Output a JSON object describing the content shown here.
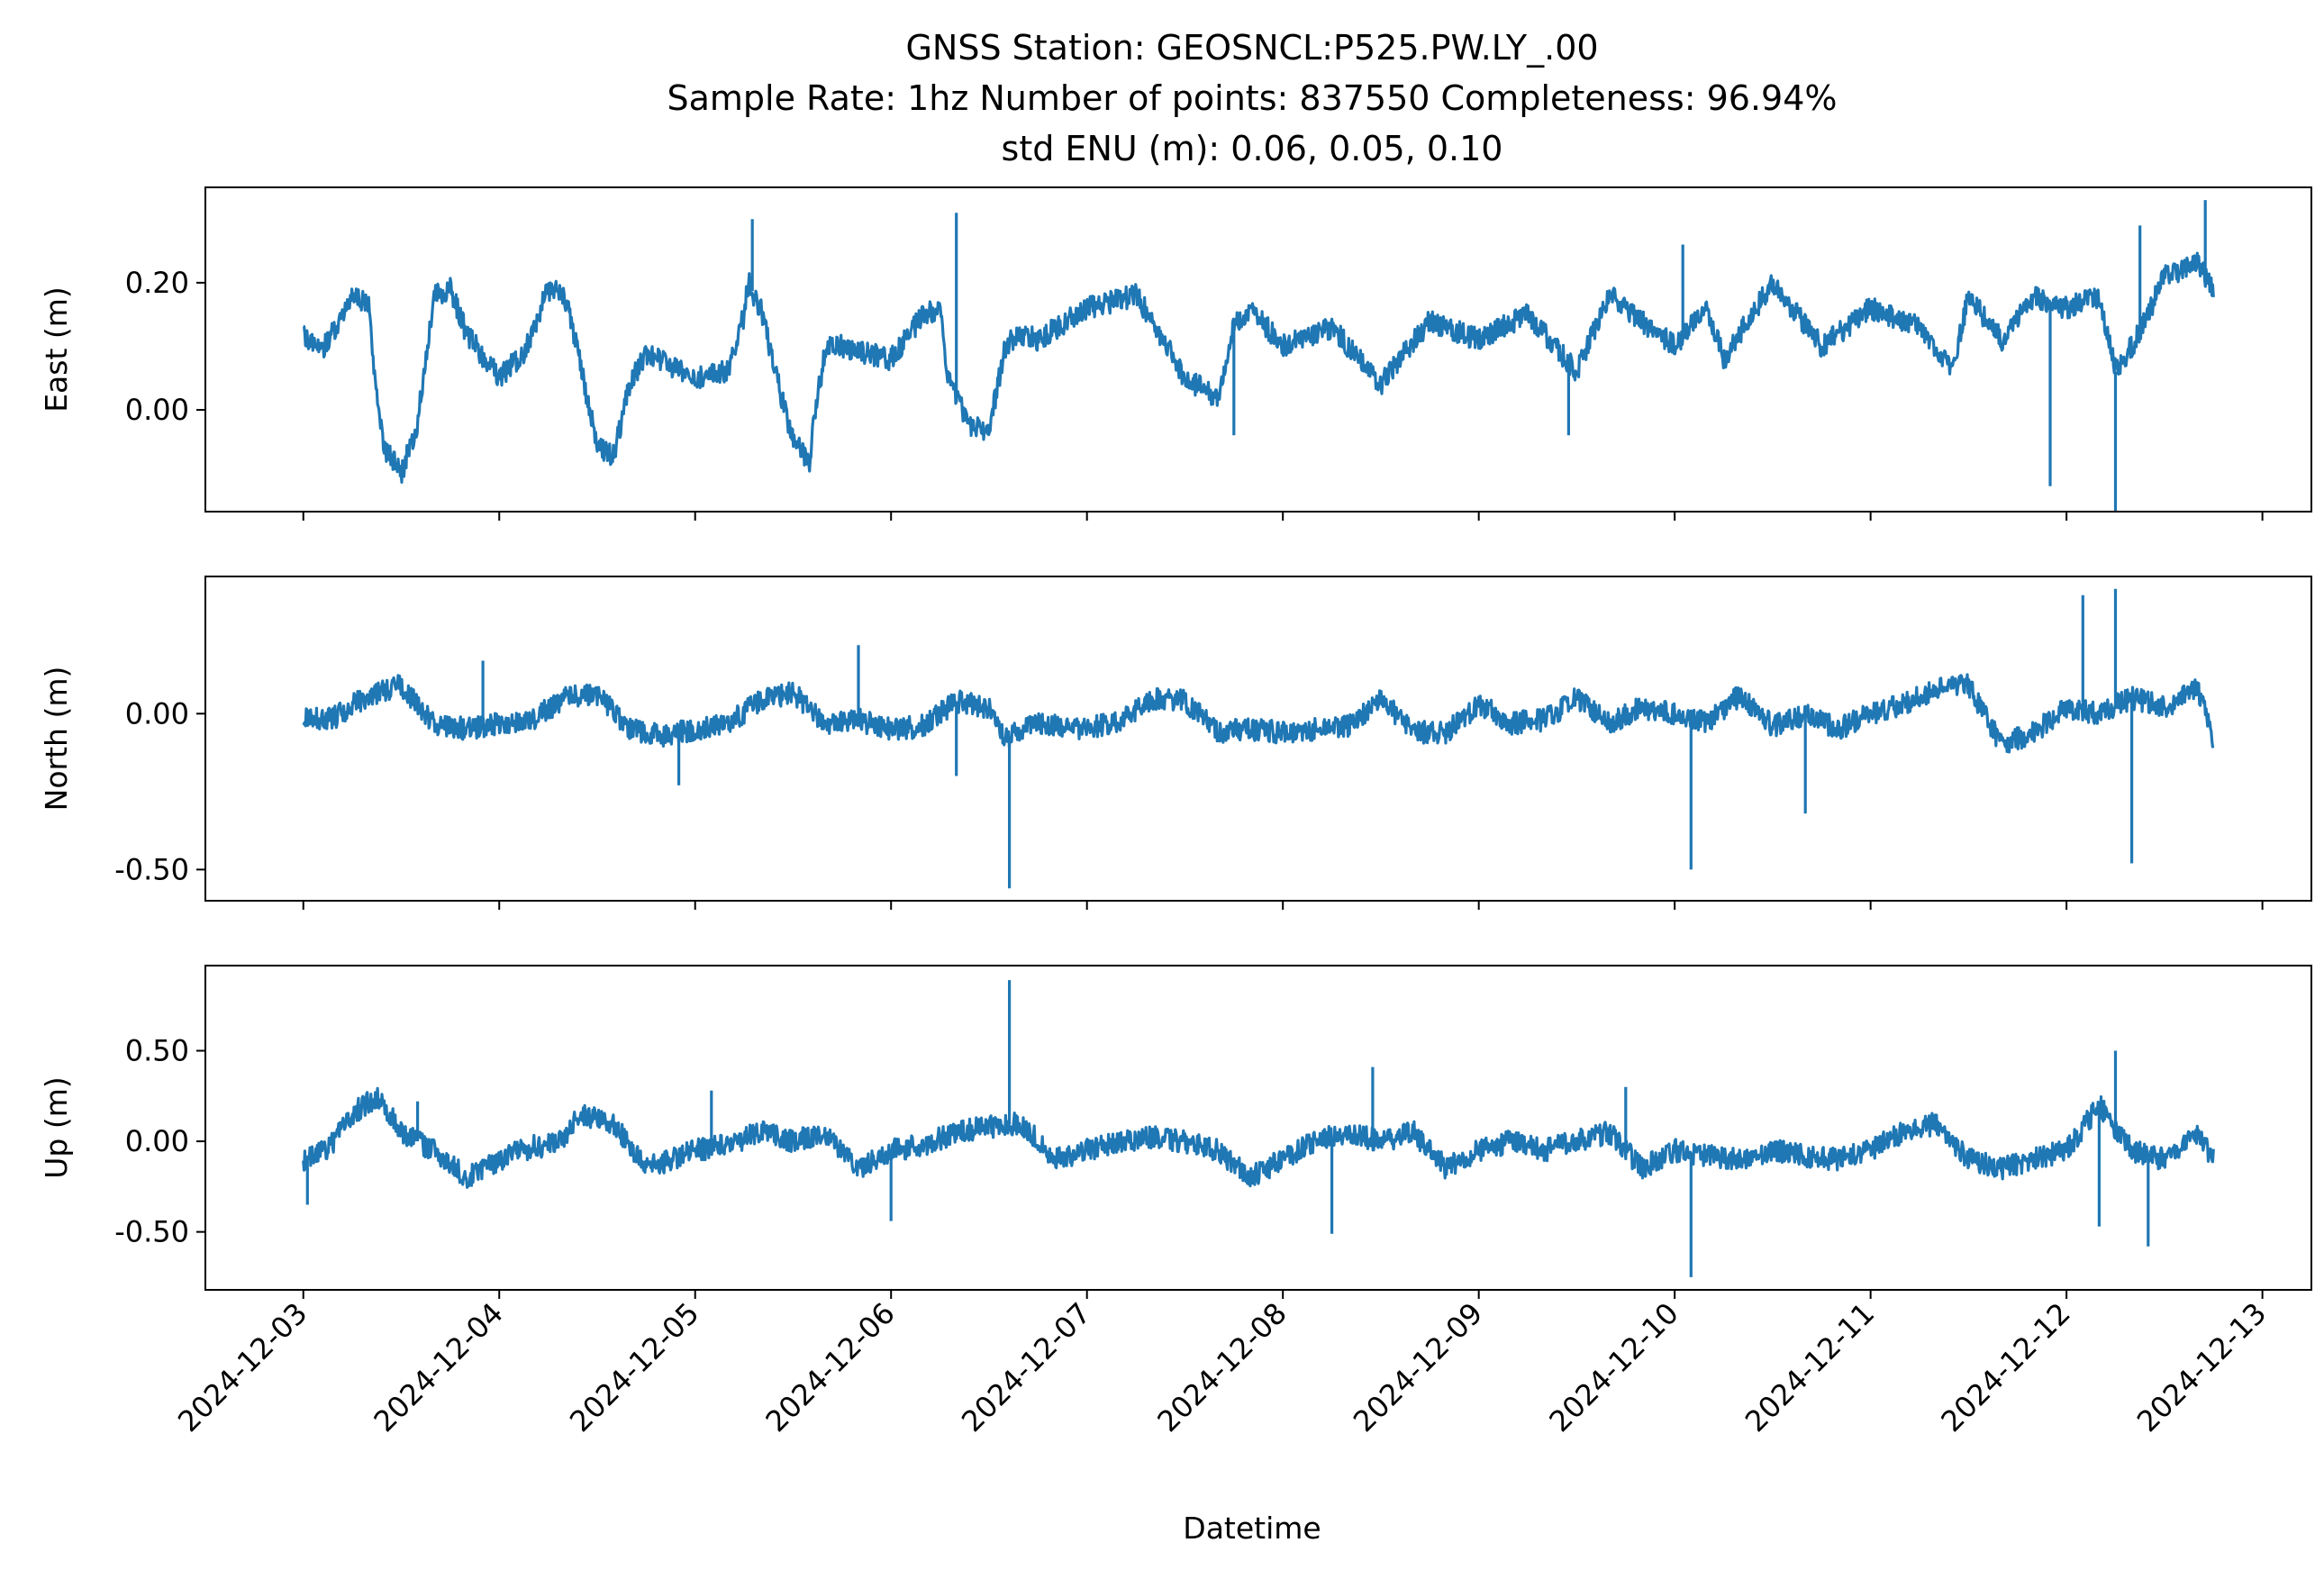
{
  "figure": {
    "title_lines": [
      "GNSS Station: GEOSNCL:P525.PW.LY_.00",
      "Sample Rate: 1hz   Number of points: 837550    Completeness:  96.94%",
      "std ENU (m):  0.06, 0.05, 0.10"
    ],
    "xlabel": "Datetime",
    "line_color": "#1f77b4"
  },
  "chart_data": [
    {
      "type": "line",
      "name": "east",
      "ylabel": "East (m)",
      "xlim": [
        "2024-12-02T12:00",
        "2024-12-13T06:00"
      ],
      "ylim": [
        -0.16,
        0.35
      ],
      "yticks": [
        0.0,
        0.2
      ],
      "ytick_labels": [
        "0.00",
        "0.20"
      ],
      "xtick_labels": [],
      "series": [
        {
          "x": [
            "2024-12-03T00:00",
            "2024-12-03T02:00",
            "2024-12-03T04:00",
            "2024-12-03T06:00",
            "2024-12-03T08:00",
            "2024-12-03T09:00",
            "2024-12-03T10:00",
            "2024-12-03T12:00",
            "2024-12-03T14:00",
            "2024-12-03T16:00",
            "2024-12-03T18:00",
            "2024-12-03T20:00",
            "2024-12-04T00:00",
            "2024-12-04T03:00",
            "2024-12-04T06:00",
            "2024-12-04T08:00",
            "2024-12-04T10:00",
            "2024-12-04T12:00",
            "2024-12-04T14:00",
            "2024-12-04T16:00",
            "2024-12-04T18:00",
            "2024-12-05T00:00",
            "2024-12-05T04:00",
            "2024-12-05T06:00",
            "2024-12-05T06:30",
            "2024-12-05T08:00",
            "2024-12-05T10:00",
            "2024-12-05T12:00",
            "2024-12-05T14:00",
            "2024-12-05T14:30",
            "2024-12-05T16:00",
            "2024-12-05T18:00",
            "2024-12-06T00:00",
            "2024-12-06T04:00",
            "2024-12-06T06:00",
            "2024-12-06T06:45",
            "2024-12-06T08:00",
            "2024-12-06T10:00",
            "2024-12-06T12:00",
            "2024-12-06T14:00",
            "2024-12-06T16:00",
            "2024-12-06T18:00",
            "2024-12-07T00:00",
            "2024-12-07T06:00",
            "2024-12-07T08:00",
            "2024-12-07T12:00",
            "2024-12-07T16:00",
            "2024-12-07T18:00",
            "2024-12-07T20:00",
            "2024-12-08T00:00",
            "2024-12-08T06:00",
            "2024-12-08T12:00",
            "2024-12-08T18:00",
            "2024-12-09T00:00",
            "2024-12-09T06:00",
            "2024-12-09T12:00",
            "2024-12-09T16:00",
            "2024-12-10T00:00",
            "2024-12-10T04:00",
            "2024-12-10T06:00",
            "2024-12-10T12:00",
            "2024-12-10T18:00",
            "2024-12-11T00:00",
            "2024-12-11T06:00",
            "2024-12-11T10:00",
            "2024-12-11T12:00",
            "2024-12-11T16:00",
            "2024-12-11T20:00",
            "2024-12-12T00:00",
            "2024-12-12T04:00",
            "2024-12-12T06:00",
            "2024-12-12T08:00",
            "2024-12-12T10:00",
            "2024-12-12T12:00",
            "2024-12-12T16:00",
            "2024-12-12T18:00"
          ],
          "y": [
            0.12,
            0.09,
            0.13,
            0.18,
            0.17,
            0.02,
            -0.06,
            -0.1,
            -0.02,
            0.18,
            0.19,
            0.12,
            0.05,
            0.09,
            0.19,
            0.18,
            0.07,
            -0.06,
            -0.07,
            0.04,
            0.09,
            0.05,
            0.06,
            0.15,
            0.2,
            0.16,
            0.05,
            -0.05,
            -0.08,
            -0.02,
            0.1,
            0.1,
            0.08,
            0.15,
            0.16,
            0.06,
            0.02,
            -0.03,
            -0.03,
            0.1,
            0.12,
            0.11,
            0.16,
            0.18,
            0.14,
            0.05,
            0.02,
            0.13,
            0.16,
            0.1,
            0.13,
            0.04,
            0.14,
            0.11,
            0.15,
            0.06,
            0.18,
            0.1,
            0.16,
            0.08,
            0.2,
            0.1,
            0.16,
            0.13,
            0.06,
            0.18,
            0.11,
            0.18,
            0.16,
            0.18,
            0.06,
            0.1,
            0.15,
            0.21,
            0.23,
            0.19
          ]
        }
      ],
      "spikes": [
        {
          "x": "2024-12-05T07:00",
          "y": 0.3
        },
        {
          "x": "2024-12-06T08:00",
          "y": 0.31
        },
        {
          "x": "2024-12-10T01:00",
          "y": 0.26
        },
        {
          "x": "2024-12-12T09:00",
          "y": 0.29
        },
        {
          "x": "2024-12-12T17:00",
          "y": 0.33
        },
        {
          "x": "2024-12-11T22:00",
          "y": -0.12
        },
        {
          "x": "2024-12-12T06:00",
          "y": -0.16
        },
        {
          "x": "2024-12-09T11:00",
          "y": -0.04
        },
        {
          "x": "2024-12-07T18:00",
          "y": -0.04
        }
      ]
    },
    {
      "type": "line",
      "name": "north",
      "ylabel": "North (m)",
      "xlim": [
        "2024-12-02T12:00",
        "2024-12-13T06:00"
      ],
      "ylim": [
        -0.6,
        0.44
      ],
      "yticks": [
        -0.5,
        0.0
      ],
      "ytick_labels": [
        "-0.50",
        "0.00"
      ],
      "xtick_labels": [],
      "series": [
        {
          "x": [
            "2024-12-03T00:00",
            "2024-12-03T04:00",
            "2024-12-03T08:00",
            "2024-12-03T12:00",
            "2024-12-03T16:00",
            "2024-12-03T20:00",
            "2024-12-04T00:00",
            "2024-12-04T04:00",
            "2024-12-04T08:00",
            "2024-12-04T12:00",
            "2024-12-04T16:00",
            "2024-12-04T20:00",
            "2024-12-05T00:00",
            "2024-12-05T04:00",
            "2024-12-05T08:00",
            "2024-12-05T12:00",
            "2024-12-05T16:00",
            "2024-12-05T20:00",
            "2024-12-06T00:00",
            "2024-12-06T04:00",
            "2024-12-06T08:00",
            "2024-12-06T12:00",
            "2024-12-06T14:00",
            "2024-12-06T18:00",
            "2024-12-07T00:00",
            "2024-12-07T04:00",
            "2024-12-07T08:00",
            "2024-12-07T12:00",
            "2024-12-07T16:00",
            "2024-12-07T20:00",
            "2024-12-08T00:00",
            "2024-12-08T04:00",
            "2024-12-08T08:00",
            "2024-12-08T12:00",
            "2024-12-08T16:00",
            "2024-12-08T20:00",
            "2024-12-09T00:00",
            "2024-12-09T04:00",
            "2024-12-09T08:00",
            "2024-12-09T12:00",
            "2024-12-09T16:00",
            "2024-12-09T20:00",
            "2024-12-10T00:00",
            "2024-12-10T04:00",
            "2024-12-10T08:00",
            "2024-12-10T12:00",
            "2024-12-10T16:00",
            "2024-12-10T20:00",
            "2024-12-11T00:00",
            "2024-12-11T04:00",
            "2024-12-11T08:00",
            "2024-12-11T12:00",
            "2024-12-11T16:00",
            "2024-12-11T20:00",
            "2024-12-12T00:00",
            "2024-12-12T04:00",
            "2024-12-12T08:00",
            "2024-12-12T12:00",
            "2024-12-12T16:00",
            "2024-12-12T18:00"
          ],
          "y": [
            -0.02,
            -0.01,
            0.06,
            0.09,
            -0.03,
            -0.05,
            -0.03,
            -0.02,
            0.05,
            0.06,
            -0.05,
            -0.07,
            -0.05,
            -0.03,
            0.04,
            0.07,
            -0.04,
            -0.02,
            -0.05,
            -0.04,
            0.04,
            0.02,
            -0.08,
            -0.03,
            -0.05,
            -0.02,
            0.05,
            0.04,
            -0.06,
            -0.05,
            -0.06,
            -0.05,
            -0.04,
            0.05,
            -0.06,
            -0.06,
            0.03,
            -0.03,
            -0.02,
            0.05,
            -0.03,
            0.02,
            0.0,
            -0.03,
            0.06,
            -0.04,
            0.0,
            -0.05,
            0.0,
            0.03,
            0.08,
            0.09,
            -0.1,
            -0.06,
            0.02,
            0.0,
            0.05,
            0.02,
            0.08,
            -0.08
          ]
        }
      ],
      "spikes": [
        {
          "x": "2024-12-03T22:00",
          "y": 0.17
        },
        {
          "x": "2024-12-05T20:00",
          "y": 0.22
        },
        {
          "x": "2024-12-06T14:30",
          "y": -0.56
        },
        {
          "x": "2024-12-10T02:00",
          "y": -0.5
        },
        {
          "x": "2024-12-10T16:00",
          "y": -0.32
        },
        {
          "x": "2024-12-12T02:00",
          "y": 0.38
        },
        {
          "x": "2024-12-12T06:00",
          "y": 0.4
        },
        {
          "x": "2024-12-12T08:00",
          "y": -0.48
        },
        {
          "x": "2024-12-04T22:00",
          "y": -0.23
        },
        {
          "x": "2024-12-06T08:00",
          "y": -0.2
        }
      ]
    },
    {
      "type": "line",
      "name": "up",
      "ylabel": "Up (m)",
      "xlim": [
        "2024-12-02T12:00",
        "2024-12-13T06:00"
      ],
      "ylim": [
        -0.82,
        0.97
      ],
      "yticks": [
        -0.5,
        0.0,
        0.5
      ],
      "ytick_labels": [
        "-0.50",
        "0.00",
        "0.50"
      ],
      "xtick_labels": [
        "2024-12-03",
        "2024-12-04",
        "2024-12-05",
        "2024-12-06",
        "2024-12-07",
        "2024-12-08",
        "2024-12-09",
        "2024-12-10",
        "2024-12-11",
        "2024-12-12",
        "2024-12-13"
      ],
      "series": [
        {
          "x": [
            "2024-12-03T00:00",
            "2024-12-03T03:00",
            "2024-12-03T06:00",
            "2024-12-03T09:00",
            "2024-12-03T12:00",
            "2024-12-03T16:00",
            "2024-12-03T20:00",
            "2024-12-04T00:00",
            "2024-12-04T04:00",
            "2024-12-04T07:00",
            "2024-12-04T10:00",
            "2024-12-04T14:00",
            "2024-12-04T18:00",
            "2024-12-05T00:00",
            "2024-12-05T04:00",
            "2024-12-05T08:00",
            "2024-12-05T12:00",
            "2024-12-05T16:00",
            "2024-12-05T20:00",
            "2024-12-06T00:00",
            "2024-12-06T04:00",
            "2024-12-06T08:00",
            "2024-12-06T12:00",
            "2024-12-06T16:00",
            "2024-12-06T20:00",
            "2024-12-07T00:00",
            "2024-12-07T04:00",
            "2024-12-07T08:00",
            "2024-12-07T12:00",
            "2024-12-07T16:00",
            "2024-12-07T20:00",
            "2024-12-08T00:00",
            "2024-12-08T04:00",
            "2024-12-08T08:00",
            "2024-12-08T12:00",
            "2024-12-08T16:00",
            "2024-12-08T20:00",
            "2024-12-09T00:00",
            "2024-12-09T04:00",
            "2024-12-09T08:00",
            "2024-12-09T12:00",
            "2024-12-09T16:00",
            "2024-12-09T20:00",
            "2024-12-10T00:00",
            "2024-12-10T04:00",
            "2024-12-10T08:00",
            "2024-12-10T12:00",
            "2024-12-10T16:00",
            "2024-12-10T20:00",
            "2024-12-11T00:00",
            "2024-12-11T04:00",
            "2024-12-11T08:00",
            "2024-12-11T12:00",
            "2024-12-11T16:00",
            "2024-12-11T20:00",
            "2024-12-12T00:00",
            "2024-12-12T04:00",
            "2024-12-12T08:00",
            "2024-12-12T12:00",
            "2024-12-12T16:00",
            "2024-12-12T18:00"
          ],
          "y": [
            -0.1,
            -0.05,
            0.15,
            0.25,
            0.05,
            -0.05,
            -0.2,
            -0.1,
            -0.03,
            -0.02,
            0.15,
            0.1,
            -0.15,
            -0.05,
            -0.02,
            0.05,
            0.0,
            0.05,
            -0.15,
            -0.05,
            -0.02,
            0.05,
            0.08,
            0.1,
            -0.1,
            -0.05,
            0.0,
            0.02,
            0.0,
            -0.05,
            -0.2,
            -0.1,
            0.0,
            0.05,
            0.0,
            0.05,
            -0.15,
            -0.05,
            0.0,
            -0.05,
            0.0,
            0.05,
            -0.15,
            -0.05,
            -0.08,
            -0.1,
            -0.05,
            -0.08,
            -0.1,
            -0.05,
            0.05,
            0.1,
            -0.1,
            -0.15,
            -0.1,
            -0.05,
            0.2,
            -0.05,
            -0.1,
            0.05,
            -0.1
          ]
        }
      ],
      "spikes": [
        {
          "x": "2024-12-03T00:30",
          "y": -0.35
        },
        {
          "x": "2024-12-03T14:00",
          "y": 0.22
        },
        {
          "x": "2024-12-05T02:00",
          "y": 0.28
        },
        {
          "x": "2024-12-06T00:00",
          "y": -0.44
        },
        {
          "x": "2024-12-06T14:30",
          "y": 0.89
        },
        {
          "x": "2024-12-08T06:00",
          "y": -0.51
        },
        {
          "x": "2024-12-08T11:00",
          "y": 0.41
        },
        {
          "x": "2024-12-10T02:00",
          "y": -0.75
        },
        {
          "x": "2024-12-12T06:00",
          "y": 0.5
        },
        {
          "x": "2024-12-12T04:00",
          "y": -0.47
        },
        {
          "x": "2024-12-12T10:00",
          "y": -0.58
        },
        {
          "x": "2024-12-09T18:00",
          "y": 0.3
        }
      ]
    }
  ]
}
